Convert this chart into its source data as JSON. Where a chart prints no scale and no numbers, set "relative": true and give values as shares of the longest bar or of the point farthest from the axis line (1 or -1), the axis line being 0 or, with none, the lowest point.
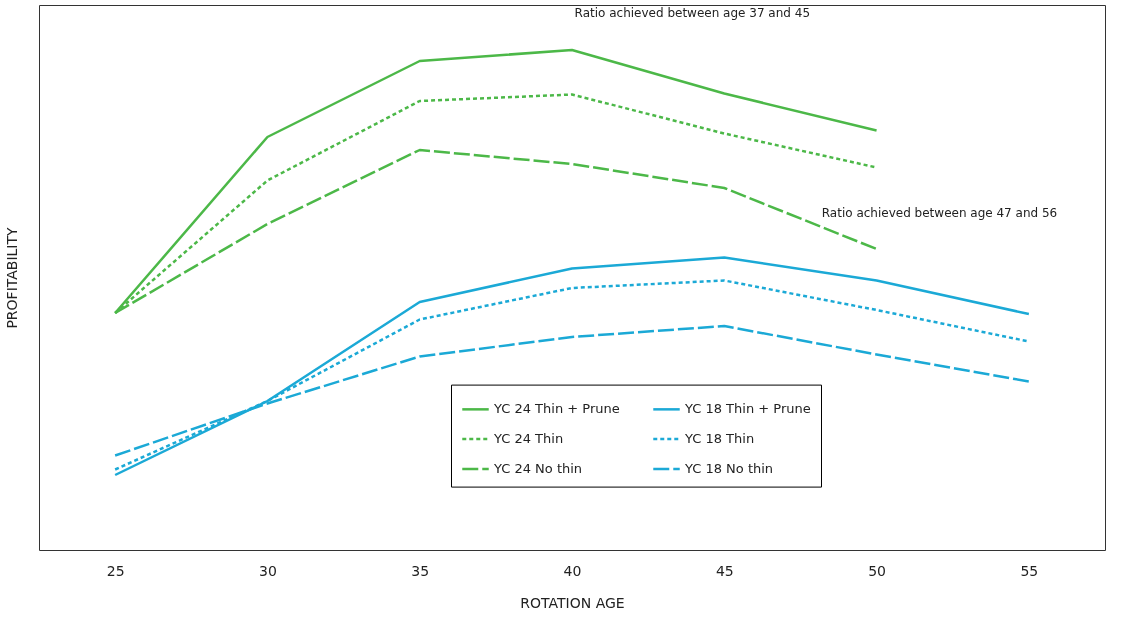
{
  "chart_data": {
    "type": "line",
    "relative": true,
    "xlabel": "ROTATION AGE",
    "ylabel": "PROFITABILITY",
    "x": [
      25,
      30,
      35,
      40,
      45,
      50,
      55
    ],
    "xlim": [
      22.5,
      57.5
    ],
    "xticks": [
      25,
      30,
      35,
      40,
      45,
      50,
      55
    ],
    "tick_labels": "x",
    "grid": false,
    "legend": "bottom right",
    "marker": "none",
    "annotations": [
      "Ratio achieved between age 37 and 45",
      "Ratio achieved between age 47 and 56"
    ],
    "series": [
      {
        "name": "YC 24 Thin + Prune",
        "color": "#4cb848",
        "line_style": "solid",
        "values": [
          0.474,
          0.826,
          0.978,
          1,
          0.913,
          0.839,
          null
        ]
      },
      {
        "name": "YC 24 Thin",
        "color": "#4cb848",
        "line_style": "dotted",
        "values": [
          0.474,
          0.739,
          0.898,
          0.911,
          0.833,
          0.765,
          null
        ]
      },
      {
        "name": "YC 24 No thin",
        "color": "#4cb848",
        "line_style": "dashed",
        "values": [
          0.474,
          0.652,
          0.8,
          0.772,
          0.724,
          0.602,
          null
        ]
      },
      {
        "name": "YC 18 Thin + Prune",
        "color": "#1ba9d6",
        "line_style": "solid",
        "values": [
          0.15,
          0.298,
          0.496,
          0.563,
          0.585,
          0.539,
          0.472
        ]
      },
      {
        "name": "YC 18 Thin",
        "color": "#1ba9d6",
        "line_style": "dotted",
        "values": [
          0.161,
          0.298,
          0.461,
          0.524,
          0.539,
          0.48,
          0.417
        ]
      },
      {
        "name": "YC 18 No thin",
        "color": "#1ba9d6",
        "line_style": "dashed",
        "values": [
          0.189,
          0.293,
          0.387,
          0.426,
          0.448,
          0.391,
          0.337
        ]
      }
    ]
  }
}
